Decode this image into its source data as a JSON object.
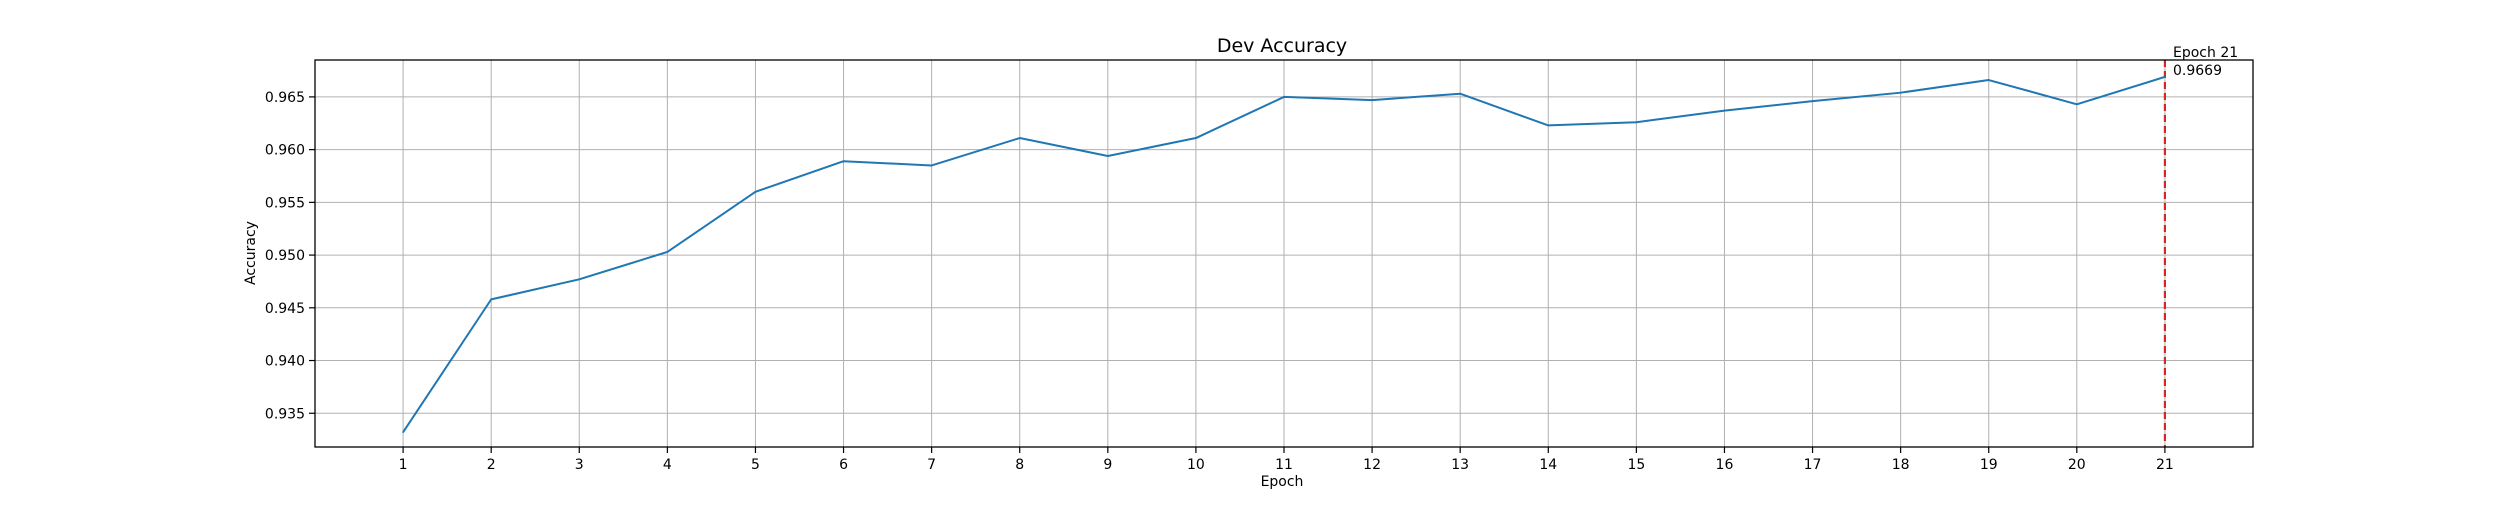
{
  "chart_data": {
    "type": "line",
    "title": "Dev Accuracy",
    "xlabel": "Epoch",
    "ylabel": "Accuracy",
    "x": [
      1,
      2,
      3,
      4,
      5,
      6,
      7,
      8,
      9,
      10,
      11,
      12,
      13,
      14,
      15,
      16,
      17,
      18,
      19,
      20,
      21
    ],
    "series": [
      {
        "values": [
          0.9332,
          0.9458,
          0.9477,
          0.9503,
          0.956,
          0.9589,
          0.9585,
          0.9611,
          0.9594,
          0.9611,
          0.965,
          0.9647,
          0.9653,
          0.9623,
          0.9626,
          0.9637,
          0.9646,
          0.9654,
          0.9666,
          0.9643,
          0.9669
        ],
        "color": "#1f77b4"
      }
    ],
    "xlim": [
      0,
      22
    ],
    "ylim": [
      0.9318,
      0.9685
    ],
    "x_ticks": [
      "1",
      "2",
      "3",
      "4",
      "5",
      "6",
      "7",
      "8",
      "9",
      "10",
      "11",
      "12",
      "13",
      "14",
      "15",
      "16",
      "17",
      "18",
      "19",
      "20",
      "21"
    ],
    "y_ticks": [
      "0.935",
      "0.940",
      "0.945",
      "0.950",
      "0.955",
      "0.960",
      "0.965"
    ],
    "grid": true,
    "annotation": {
      "x": 21,
      "line_color": "#d62728",
      "line_style": "dashed",
      "label_line1": "Epoch 21",
      "label_line2": "0.9669"
    }
  }
}
